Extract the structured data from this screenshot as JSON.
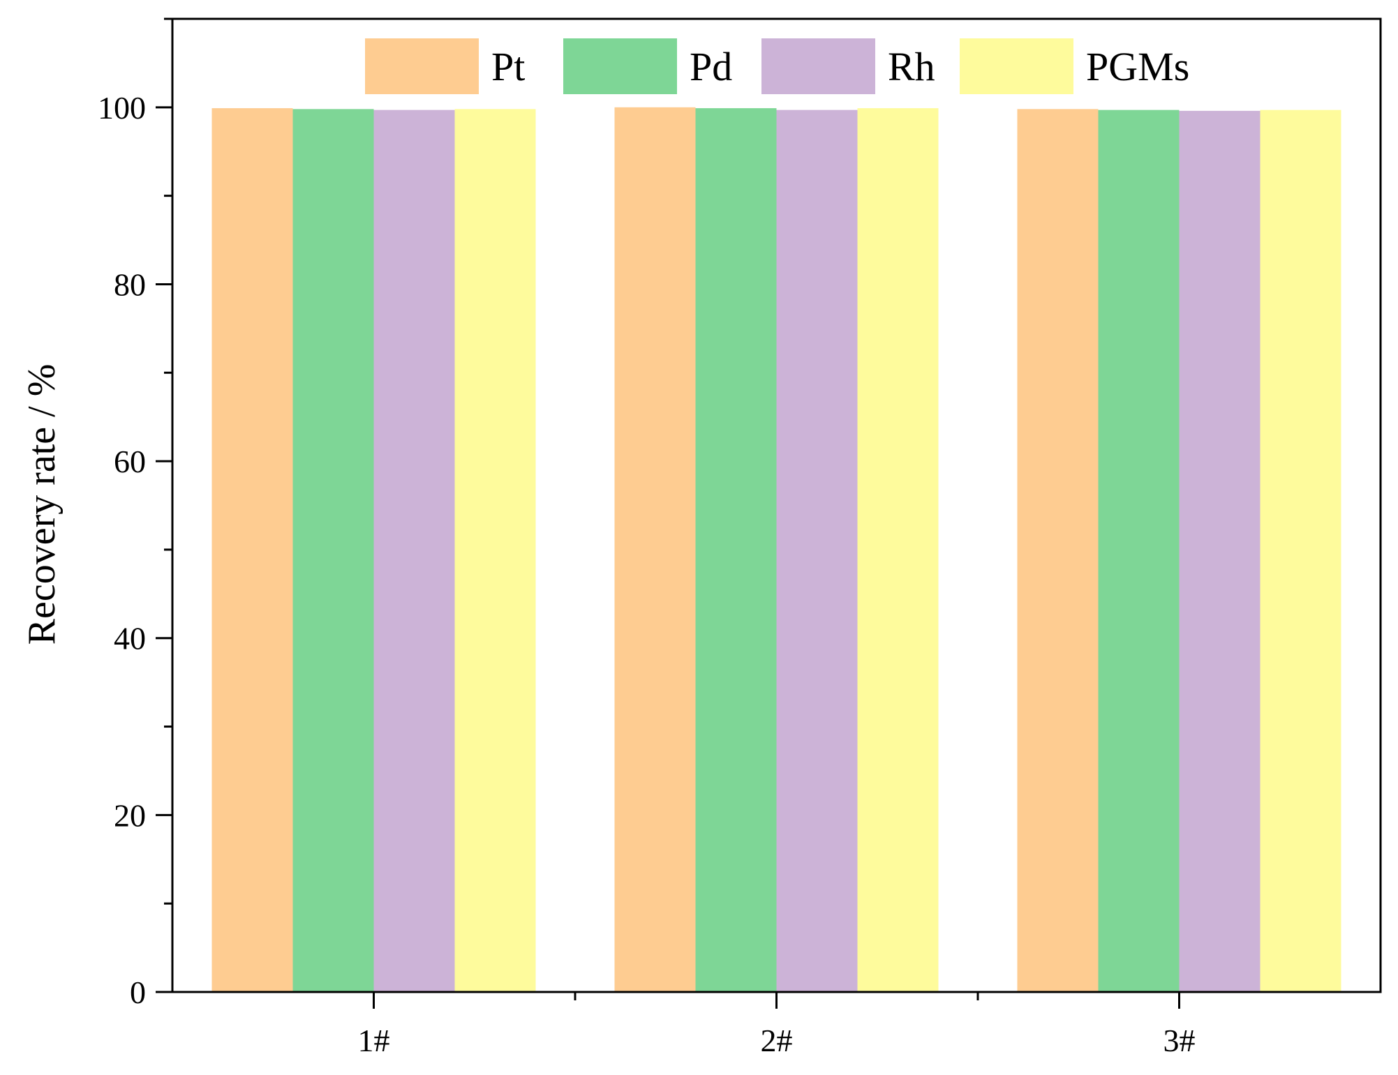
{
  "chart_data": {
    "type": "bar",
    "categories": [
      "1#",
      "2#",
      "3#"
    ],
    "series": [
      {
        "name": "Pt",
        "values": [
          99.9,
          100.0,
          99.8
        ],
        "color": "#FECC91"
      },
      {
        "name": "Pd",
        "values": [
          99.8,
          99.9,
          99.7
        ],
        "color": "#7ED696"
      },
      {
        "name": "Rh",
        "values": [
          99.7,
          99.7,
          99.6
        ],
        "color": "#CCB3D7"
      },
      {
        "name": "PGMs",
        "values": [
          99.8,
          99.9,
          99.7
        ],
        "color": "#FEFB9C"
      }
    ],
    "title": "",
    "xlabel": "",
    "ylabel": "Recovery rate / %",
    "ylim": [
      0,
      110
    ],
    "yticks": [
      0,
      20,
      40,
      60,
      80,
      100
    ],
    "grid": false,
    "legend_position": "top"
  }
}
